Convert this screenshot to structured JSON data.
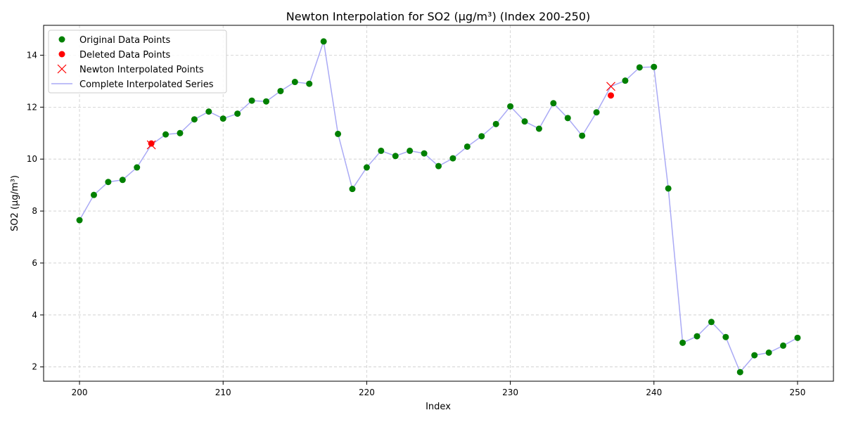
{
  "chart_data": {
    "type": "line",
    "title": "Newton Interpolation for SO2 (μg/m³) (Index 200-250)",
    "xlabel": "Index",
    "ylabel": "SO2 (μg/m³)",
    "xlim": [
      197.5,
      252.5
    ],
    "ylim": [
      1.45,
      15.15
    ],
    "xticks": [
      200,
      210,
      220,
      230,
      240,
      250
    ],
    "yticks": [
      2,
      4,
      6,
      8,
      10,
      12,
      14
    ],
    "grid": true,
    "legend_position": "top-left",
    "legend": [
      "Original Data Points",
      "Deleted Data Points",
      "Newton Interpolated Points",
      "Complete Interpolated Series"
    ],
    "colors": {
      "original": "#008000",
      "deleted": "#ff0000",
      "interpolated": "#ff0000",
      "series_line": "#aaaaf5",
      "grid": "#cccccc"
    },
    "series": [
      {
        "name": "Original Data Points",
        "x": [
          200,
          201,
          202,
          203,
          204,
          206,
          207,
          208,
          209,
          210,
          211,
          212,
          213,
          214,
          215,
          216,
          217,
          218,
          219,
          220,
          221,
          222,
          223,
          224,
          225,
          226,
          227,
          228,
          229,
          230,
          231,
          232,
          233,
          234,
          235,
          236,
          238,
          239,
          240,
          241,
          242,
          243,
          244,
          245,
          246,
          247,
          248,
          249,
          250
        ],
        "values": [
          7.65,
          8.62,
          9.12,
          9.2,
          9.68,
          10.95,
          11.0,
          11.53,
          11.83,
          11.56,
          11.75,
          12.25,
          12.22,
          12.62,
          12.97,
          12.9,
          14.53,
          10.97,
          8.85,
          9.68,
          10.32,
          10.12,
          10.32,
          10.22,
          9.73,
          10.03,
          10.48,
          10.88,
          11.35,
          12.03,
          11.45,
          11.17,
          12.15,
          11.58,
          10.9,
          11.8,
          13.02,
          13.53,
          13.55,
          8.87,
          2.93,
          3.18,
          3.73,
          3.15,
          1.8,
          2.45,
          2.55,
          2.82,
          3.12
        ]
      },
      {
        "name": "Deleted Data Points",
        "x": [
          205,
          237
        ],
        "values": [
          10.6,
          12.45
        ]
      },
      {
        "name": "Newton Interpolated Points",
        "x": [
          205,
          237
        ],
        "values": [
          10.55,
          12.8
        ]
      },
      {
        "name": "Complete Interpolated Series",
        "x": [
          200,
          201,
          202,
          203,
          204,
          205,
          206,
          207,
          208,
          209,
          210,
          211,
          212,
          213,
          214,
          215,
          216,
          217,
          218,
          219,
          220,
          221,
          222,
          223,
          224,
          225,
          226,
          227,
          228,
          229,
          230,
          231,
          232,
          233,
          234,
          235,
          236,
          237,
          238,
          239,
          240,
          241,
          242,
          243,
          244,
          245,
          246,
          247,
          248,
          249,
          250
        ],
        "values": [
          7.65,
          8.62,
          9.12,
          9.2,
          9.68,
          10.55,
          10.95,
          11.0,
          11.53,
          11.83,
          11.56,
          11.75,
          12.25,
          12.22,
          12.62,
          12.97,
          12.9,
          14.53,
          10.97,
          8.85,
          9.68,
          10.32,
          10.12,
          10.32,
          10.22,
          9.73,
          10.03,
          10.48,
          10.88,
          11.35,
          12.03,
          11.45,
          11.17,
          12.15,
          11.58,
          10.9,
          11.8,
          12.8,
          13.02,
          13.53,
          13.55,
          8.87,
          2.93,
          3.18,
          3.73,
          3.15,
          1.8,
          2.45,
          2.55,
          2.82,
          3.12
        ]
      }
    ]
  }
}
